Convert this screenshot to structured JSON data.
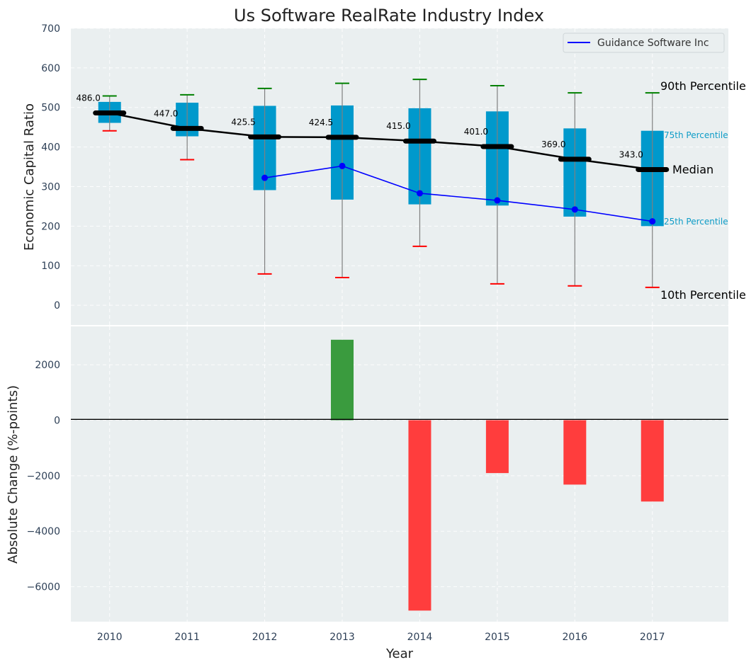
{
  "chart_data": [
    {
      "type": "box",
      "title": "Us Software RealRate Industry Index",
      "xlabel": "",
      "ylabel": "Economic Capital Ratio",
      "ylim": [
        -50,
        700
      ],
      "yticks": [
        0,
        100,
        200,
        300,
        400,
        500,
        600,
        700
      ],
      "xlim": [
        2009.5,
        2017.98
      ],
      "grid": true,
      "legend": {
        "position": "top-right",
        "entries": [
          {
            "label": "Guidance Software Inc",
            "color": "#0000ff"
          }
        ]
      },
      "categories": [
        2010,
        2011,
        2012,
        2013,
        2014,
        2015,
        2016,
        2017
      ],
      "p90": [
        529,
        532,
        548,
        561,
        571,
        555,
        537,
        537
      ],
      "p75": [
        514,
        512,
        504,
        505,
        498,
        490,
        447,
        441
      ],
      "median": [
        486.0,
        447.0,
        425.5,
        424.5,
        415.0,
        401.0,
        369.0,
        343.0
      ],
      "p25": [
        461,
        427,
        291,
        267,
        255,
        252,
        224,
        200
      ],
      "p10": [
        441,
        368,
        79,
        70,
        149,
        54,
        49,
        45
      ],
      "median_labels": [
        "486.0",
        "447.0",
        "425.5",
        "424.5",
        "415.0",
        "401.0",
        "369.0",
        "343.0"
      ],
      "series": [
        {
          "name": "Guidance Software Inc",
          "x": [
            2012,
            2013,
            2014,
            2015,
            2016,
            2017
          ],
          "values": [
            322,
            352,
            283,
            265,
            242,
            212
          ],
          "color": "#0000ff"
        }
      ],
      "annotations": {
        "p90": "90th Percentile",
        "p75": "75th Percentile",
        "median": "Median",
        "p25": "25th Percentile",
        "p10": "10th Percentile"
      },
      "colors": {
        "box": "#0099cc",
        "median": "#000000",
        "p90_cap": "#008000",
        "p10_cap": "#ff0000",
        "whisker": "#808080",
        "background": "#eaeff0"
      }
    },
    {
      "type": "bar",
      "xlabel": "Year",
      "ylabel": "Absolute Change (%-points)",
      "ylim": [
        -7260,
        3380
      ],
      "yticks": [
        -6000,
        -4000,
        -2000,
        0,
        2000
      ],
      "ytick_labels": [
        "−6000",
        "−4000",
        "−2000",
        "0",
        "2000"
      ],
      "categories": [
        2010,
        2011,
        2012,
        2013,
        2014,
        2015,
        2016,
        2017
      ],
      "xtick_labels": [
        "2010",
        "2011",
        "2012",
        "2013",
        "2014",
        "2015",
        "2016",
        "2017"
      ],
      "values": [
        null,
        null,
        null,
        2900,
        -6860,
        -1905,
        -2320,
        -2930
      ],
      "colors": {
        "positive": "#3a9b3e",
        "negative": "#ff3d3d"
      },
      "grid": true
    }
  ]
}
